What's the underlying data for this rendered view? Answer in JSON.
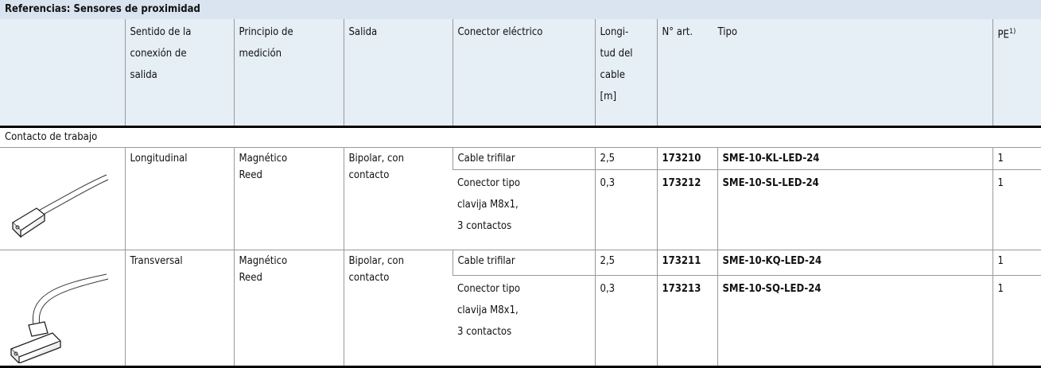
{
  "title": "Referencias: Sensores de proximidad",
  "header": [
    "Sentido de la\nconexión de\nsalida",
    "Principio de\nmedición",
    "Salida",
    "Conector eléctrico",
    "Longi-\ntud del\ncable\n[m]",
    "N° art.",
    "Tipo"
  ],
  "pe": {
    "text": "PE",
    "note": "1)"
  },
  "section": "Contacto de trabajo",
  "groups": [
    {
      "sentido": "Longitudinal",
      "principio": "Magnético\nReed",
      "salida": "Bipolar, con\ncontacto",
      "rows": [
        {
          "conector": "Cable trifilar",
          "longitud": "2,5",
          "art": "173210",
          "tipo": "SME-10-KL-LED-24",
          "pe": "1"
        },
        {
          "conector": "Conector tipo\nclavija M8x1,\n3 contactos",
          "longitud": "0,3",
          "art": "173212",
          "tipo": "SME-10-SL-LED-24",
          "pe": "1"
        }
      ]
    },
    {
      "sentido": "Transversal",
      "principio": "Magnético\nReed",
      "salida": "Bipolar, con\ncontacto",
      "rows": [
        {
          "conector": "Cable trifilar",
          "longitud": "2,5",
          "art": "173211",
          "tipo": "SME-10-KQ-LED-24",
          "pe": "1"
        },
        {
          "conector": "Conector tipo\nclavija M8x1,\n3 contactos",
          "longitud": "0,3",
          "art": "173213",
          "tipo": "SME-10-SQ-LED-24",
          "pe": "1"
        }
      ]
    }
  ]
}
